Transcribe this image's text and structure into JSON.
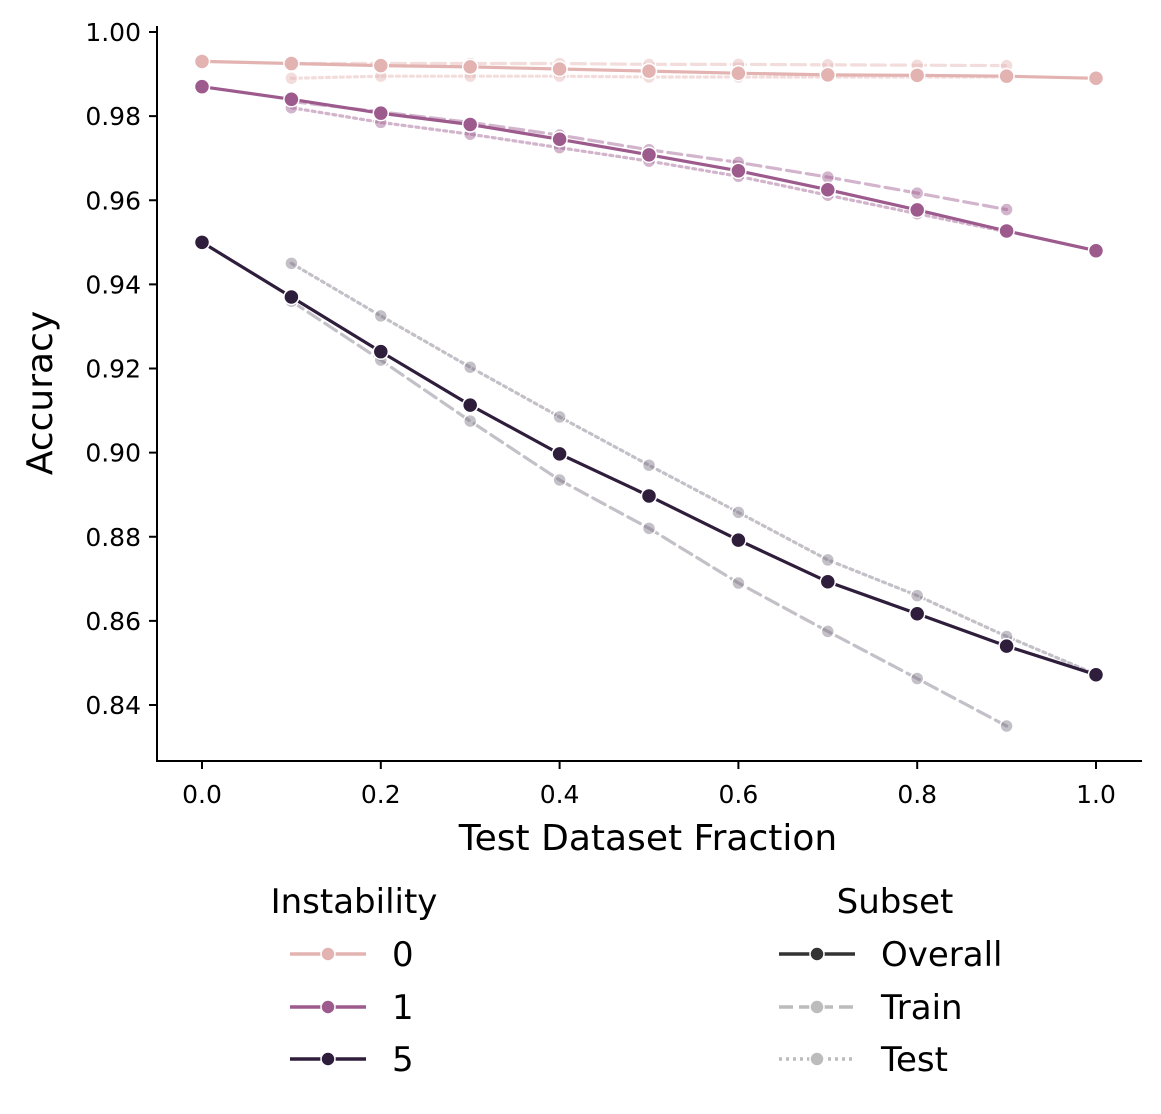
{
  "chart_data": {
    "type": "line",
    "title": "",
    "xlabel": "Test Dataset Fraction",
    "ylabel": "Accuracy",
    "xlim": [
      -0.05,
      1.05
    ],
    "ylim": [
      0.827,
      1.0
    ],
    "xticks": [
      0.0,
      0.2,
      0.4,
      0.6,
      0.8,
      1.0
    ],
    "xtick_labels": [
      "0.0",
      "0.2",
      "0.4",
      "0.6",
      "0.8",
      "1.0"
    ],
    "yticks": [
      0.84,
      0.86,
      0.88,
      0.9,
      0.92,
      0.94,
      0.96,
      0.98,
      1.0
    ],
    "ytick_labels": [
      "0.84",
      "0.86",
      "0.88",
      "0.90",
      "0.92",
      "0.94",
      "0.96",
      "0.98",
      "1.00"
    ],
    "grid": false,
    "instability_legend": {
      "title": "Instability",
      "placement": "bottom-left",
      "entries": [
        {
          "label": "0",
          "color": "#e3b3b2"
        },
        {
          "label": "1",
          "color": "#9c5a8d"
        },
        {
          "label": "5",
          "color": "#2e1d3b"
        }
      ]
    },
    "subset_legend": {
      "title": "Subset",
      "placement": "bottom-right",
      "entries": [
        {
          "label": "Overall",
          "style": "solid",
          "color": "#333333"
        },
        {
          "label": "Train",
          "style": "dashed",
          "color": "#bcbcbc"
        },
        {
          "label": "Test",
          "style": "dotted",
          "color": "#bcbcbc"
        }
      ]
    },
    "series": [
      {
        "instability": "0",
        "subset": "Train",
        "x": [
          0.1,
          0.2,
          0.3,
          0.4,
          0.5,
          0.6,
          0.7,
          0.8,
          0.9
        ],
        "values": [
          0.9925,
          0.9925,
          0.9925,
          0.9925,
          0.9923,
          0.9923,
          0.9922,
          0.9921,
          0.992
        ]
      },
      {
        "instability": "0",
        "subset": "Test",
        "x": [
          0.1,
          0.2,
          0.3,
          0.4,
          0.5,
          0.6,
          0.7,
          0.8,
          0.9
        ],
        "values": [
          0.989,
          0.9895,
          0.9895,
          0.9895,
          0.9893,
          0.9893,
          0.9893,
          0.9893,
          0.9893
        ]
      },
      {
        "instability": "1",
        "subset": "Train",
        "x": [
          0.1,
          0.2,
          0.3,
          0.4,
          0.5,
          0.6,
          0.7,
          0.8,
          0.9
        ],
        "values": [
          0.9835,
          0.981,
          0.9785,
          0.9755,
          0.972,
          0.969,
          0.9655,
          0.9617,
          0.9578
        ]
      },
      {
        "instability": "1",
        "subset": "Test",
        "x": [
          0.1,
          0.2,
          0.3,
          0.4,
          0.5,
          0.6,
          0.7,
          0.8,
          0.9
        ],
        "values": [
          0.982,
          0.9785,
          0.9757,
          0.9725,
          0.9693,
          0.9657,
          0.9612,
          0.9568,
          0.9525
        ]
      },
      {
        "instability": "5",
        "subset": "Train",
        "x": [
          0.1,
          0.2,
          0.3,
          0.4,
          0.5,
          0.6,
          0.7,
          0.8,
          0.9
        ],
        "values": [
          0.936,
          0.922,
          0.9075,
          0.8935,
          0.882,
          0.869,
          0.8575,
          0.8463,
          0.835
        ]
      },
      {
        "instability": "5",
        "subset": "Test",
        "x": [
          0.1,
          0.2,
          0.3,
          0.4,
          0.5,
          0.6,
          0.7,
          0.8,
          0.9,
          1.0
        ],
        "values": [
          0.945,
          0.9325,
          0.9203,
          0.9085,
          0.897,
          0.8858,
          0.8745,
          0.866,
          0.8563,
          0.8473
        ]
      },
      {
        "instability": "0",
        "subset": "Overall",
        "x": [
          0.0,
          0.1,
          0.2,
          0.3,
          0.4,
          0.5,
          0.6,
          0.7,
          0.8,
          0.9,
          1.0
        ],
        "values": [
          0.993,
          0.9925,
          0.992,
          0.9917,
          0.9912,
          0.9907,
          0.9902,
          0.9898,
          0.9897,
          0.9895,
          0.989
        ]
      },
      {
        "instability": "1",
        "subset": "Overall",
        "x": [
          0.0,
          0.1,
          0.2,
          0.3,
          0.4,
          0.5,
          0.6,
          0.7,
          0.8,
          0.9,
          1.0
        ],
        "values": [
          0.987,
          0.984,
          0.9807,
          0.978,
          0.9745,
          0.9708,
          0.967,
          0.9625,
          0.9577,
          0.9527,
          0.948
        ]
      },
      {
        "instability": "5",
        "subset": "Overall",
        "x": [
          0.0,
          0.1,
          0.2,
          0.3,
          0.4,
          0.5,
          0.6,
          0.7,
          0.8,
          0.9,
          1.0
        ],
        "values": [
          0.95,
          0.937,
          0.924,
          0.9113,
          0.8997,
          0.8897,
          0.8792,
          0.8693,
          0.8617,
          0.854,
          0.8472
        ]
      }
    ]
  }
}
